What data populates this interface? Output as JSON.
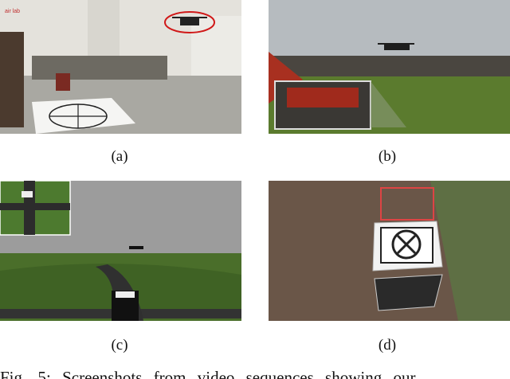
{
  "figure": {
    "panels": [
      {
        "label": "(a)",
        "sign": "air lab"
      },
      {
        "label": "(b)"
      },
      {
        "label": "(c)"
      },
      {
        "label": "(d)"
      }
    ],
    "caption": "Fig. 5: Screenshots from video sequences showing our"
  }
}
